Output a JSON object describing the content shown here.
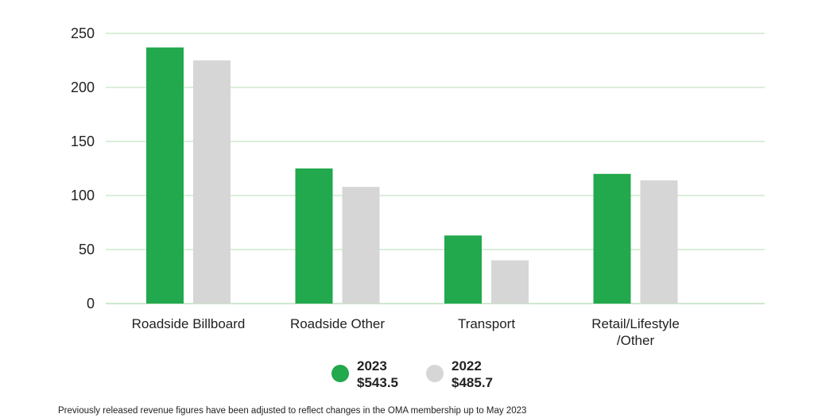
{
  "chart_data": {
    "type": "bar",
    "categories": [
      [
        "Roadside Billboard"
      ],
      [
        "Roadside Other"
      ],
      [
        "Transport"
      ],
      [
        "Retail/Lifestyle",
        "/Other"
      ]
    ],
    "series": [
      {
        "name": "2023",
        "total": "$543.5",
        "color": "#22a84d",
        "values": [
          237,
          125,
          63,
          120
        ]
      },
      {
        "name": "2022",
        "total": "$485.7",
        "color": "#d6d6d6",
        "values": [
          225,
          108,
          40,
          114
        ]
      }
    ],
    "yticks": [
      0,
      50,
      100,
      150,
      200,
      250
    ],
    "ylim": [
      0,
      250
    ],
    "grid": true,
    "grid_color": "#cfe8cf",
    "legend_position": "bottom-center",
    "title": "",
    "xlabel": "",
    "ylabel": ""
  },
  "footnote": "Previously released revenue figures have been adjusted to reflect changes in the OMA membership up to May 2023"
}
